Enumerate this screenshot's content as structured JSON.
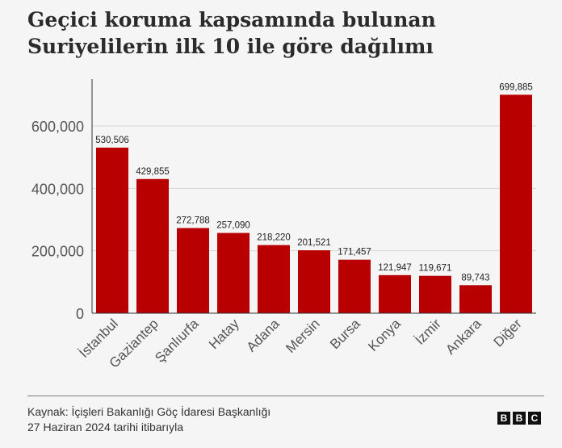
{
  "title_line1": "Geçici koruma kapsamında bulunan",
  "title_line2": "Suriyelilerin ilk 10 ile göre dağılımı",
  "source_line1": "Kaynak: İçişleri Bakanlığı Göç İdaresi Başkanlığı",
  "source_line2": "27 Haziran 2024 tarihi itibarıyla",
  "logo_letters": [
    "B",
    "B",
    "C"
  ],
  "chart_data": {
    "type": "bar",
    "categories": [
      "İstanbul",
      "Gaziantep",
      "Şanlıurfa",
      "Hatay",
      "Adana",
      "Mersin",
      "Bursa",
      "Konya",
      "İzmir",
      "Ankara",
      "Diğer"
    ],
    "values": [
      530506,
      429855,
      272788,
      257090,
      218220,
      201521,
      171457,
      121947,
      119671,
      89743,
      699885
    ],
    "value_labels": [
      "530,506",
      "429,855",
      "272,788",
      "257,090",
      "218,220",
      "201,521",
      "171,457",
      "121,947",
      "119,671",
      "89,743",
      "699,885"
    ],
    "yticks": [
      0,
      200000,
      400000,
      600000
    ],
    "ytick_labels": [
      "0",
      "200,000",
      "400,000",
      "600,000"
    ],
    "ylim": [
      0,
      750000
    ],
    "bar_color": "#b80000",
    "grid": true,
    "title": "",
    "xlabel": "",
    "ylabel": ""
  }
}
